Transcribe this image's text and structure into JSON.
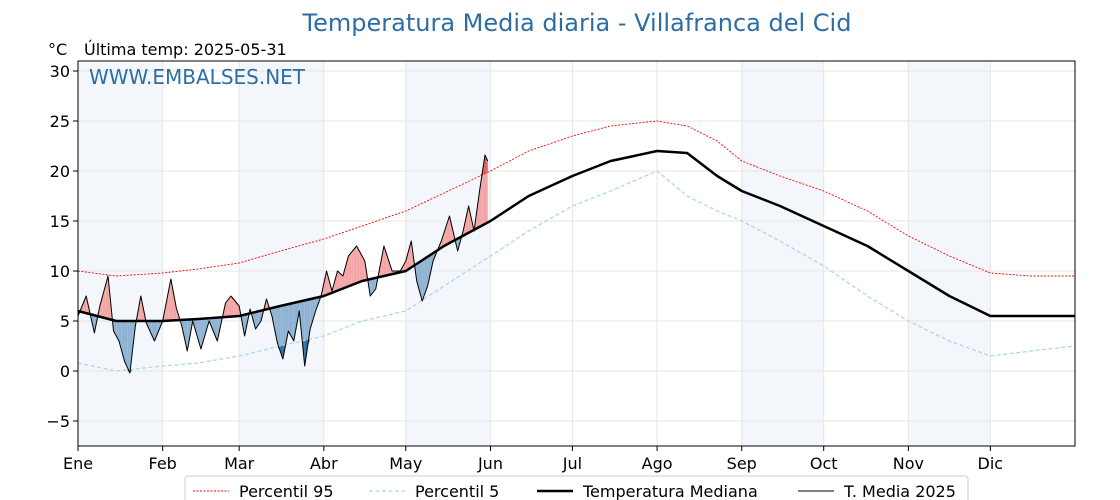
{
  "chart_data": {
    "type": "line",
    "title": "Temperatura Media diaria - Villafranca del Cid",
    "unit": "°C",
    "last_update": "Última temp: 2025-05-31",
    "watermark": "WWW.EMBALSES.NET",
    "ylim": [
      -7.5,
      31
    ],
    "yticks": [
      -5,
      0,
      5,
      10,
      15,
      20,
      25,
      30
    ],
    "xlim": [
      1,
      366
    ],
    "months": [
      {
        "label": "Ene",
        "day": 1
      },
      {
        "label": "Feb",
        "day": 32
      },
      {
        "label": "Mar",
        "day": 60
      },
      {
        "label": "Abr",
        "day": 91
      },
      {
        "label": "May",
        "day": 121
      },
      {
        "label": "Jun",
        "day": 152
      },
      {
        "label": "Jul",
        "day": 182
      },
      {
        "label": "Ago",
        "day": 213
      },
      {
        "label": "Sep",
        "day": 244
      },
      {
        "label": "Oct",
        "day": 274
      },
      {
        "label": "Nov",
        "day": 305
      },
      {
        "label": "Dic",
        "day": 335
      }
    ],
    "shaded_months": [
      "Ene",
      "Mar",
      "May",
      "Sep",
      "Nov"
    ],
    "grid": true,
    "legend_position": "bottom",
    "colors": {
      "p95": "#ff0000",
      "p5": "#add8e6",
      "median": "#000000",
      "current": "#000000",
      "above_median": "#f4a6a6",
      "above_p95": "#e06666",
      "below_median": "#8fb3d3",
      "below_p5": "#2e6fa8",
      "month_shade": "#f3f7fb",
      "title": "#2e6da4"
    },
    "series": [
      {
        "name": "Percentil 95",
        "style": "dotted-thin",
        "points": [
          [
            1,
            10
          ],
          [
            15,
            9.5
          ],
          [
            32,
            9.8
          ],
          [
            45,
            10.2
          ],
          [
            60,
            10.8
          ],
          [
            75,
            12
          ],
          [
            91,
            13.2
          ],
          [
            105,
            14.5
          ],
          [
            121,
            16
          ],
          [
            135,
            17.8
          ],
          [
            152,
            20
          ],
          [
            166,
            22
          ],
          [
            182,
            23.5
          ],
          [
            196,
            24.5
          ],
          [
            213,
            25
          ],
          [
            224,
            24.5
          ],
          [
            235,
            23
          ],
          [
            244,
            21
          ],
          [
            258,
            19.5
          ],
          [
            274,
            18
          ],
          [
            290,
            16
          ],
          [
            305,
            13.5
          ],
          [
            320,
            11.5
          ],
          [
            335,
            9.8
          ],
          [
            350,
            9.5
          ],
          [
            366,
            9.5
          ]
        ]
      },
      {
        "name": "Percentil 5",
        "style": "dashed",
        "points": [
          [
            1,
            0.8
          ],
          [
            15,
            0
          ],
          [
            32,
            0.5
          ],
          [
            45,
            0.8
          ],
          [
            60,
            1.5
          ],
          [
            75,
            2.5
          ],
          [
            91,
            3.5
          ],
          [
            105,
            5
          ],
          [
            121,
            6
          ],
          [
            135,
            8.5
          ],
          [
            152,
            11.5
          ],
          [
            166,
            14
          ],
          [
            182,
            16.5
          ],
          [
            196,
            18
          ],
          [
            213,
            20
          ],
          [
            224,
            17.5
          ],
          [
            235,
            16
          ],
          [
            244,
            15
          ],
          [
            258,
            13
          ],
          [
            274,
            10.5
          ],
          [
            290,
            7.5
          ],
          [
            305,
            5
          ],
          [
            320,
            3
          ],
          [
            335,
            1.5
          ],
          [
            350,
            2
          ],
          [
            366,
            2.5
          ]
        ]
      },
      {
        "name": "Temperatura Mediana",
        "style": "thick",
        "points": [
          [
            1,
            6
          ],
          [
            15,
            5
          ],
          [
            32,
            5
          ],
          [
            45,
            5.2
          ],
          [
            60,
            5.5
          ],
          [
            75,
            6.5
          ],
          [
            91,
            7.5
          ],
          [
            105,
            9
          ],
          [
            121,
            10
          ],
          [
            135,
            12.5
          ],
          [
            152,
            15
          ],
          [
            166,
            17.5
          ],
          [
            182,
            19.5
          ],
          [
            196,
            21
          ],
          [
            213,
            22
          ],
          [
            224,
            21.8
          ],
          [
            235,
            19.5
          ],
          [
            244,
            18
          ],
          [
            258,
            16.5
          ],
          [
            274,
            14.5
          ],
          [
            290,
            12.5
          ],
          [
            305,
            10
          ],
          [
            320,
            7.5
          ],
          [
            335,
            5.5
          ],
          [
            350,
            5.5
          ],
          [
            366,
            5.5
          ]
        ]
      },
      {
        "name": "T. Media 2025",
        "style": "thin",
        "points": [
          [
            1,
            5.5
          ],
          [
            4,
            7.5
          ],
          [
            7,
            3.8
          ],
          [
            9,
            6.5
          ],
          [
            12,
            9.5
          ],
          [
            14,
            4
          ],
          [
            16,
            3
          ],
          [
            18,
            1
          ],
          [
            20,
            -0.2
          ],
          [
            22,
            4.5
          ],
          [
            24,
            7.5
          ],
          [
            26,
            4.8
          ],
          [
            29,
            3
          ],
          [
            32,
            5
          ],
          [
            35,
            9.2
          ],
          [
            37,
            6.3
          ],
          [
            39,
            4.5
          ],
          [
            41,
            2
          ],
          [
            43,
            5
          ],
          [
            46,
            2.2
          ],
          [
            49,
            5
          ],
          [
            52,
            3
          ],
          [
            55,
            6.8
          ],
          [
            57,
            7.5
          ],
          [
            60,
            6.5
          ],
          [
            62,
            3.5
          ],
          [
            64,
            6.2
          ],
          [
            66,
            4.2
          ],
          [
            68,
            5
          ],
          [
            70,
            7.2
          ],
          [
            72,
            5.5
          ],
          [
            74,
            2.8
          ],
          [
            76,
            1.2
          ],
          [
            78,
            4
          ],
          [
            80,
            3
          ],
          [
            82,
            6
          ],
          [
            84,
            0.5
          ],
          [
            86,
            4.2
          ],
          [
            88,
            6
          ],
          [
            90,
            7.5
          ],
          [
            92,
            10
          ],
          [
            94,
            8
          ],
          [
            96,
            10
          ],
          [
            98,
            9.5
          ],
          [
            100,
            11.5
          ],
          [
            103,
            12.5
          ],
          [
            106,
            11
          ],
          [
            108,
            7.5
          ],
          [
            110,
            8.2
          ],
          [
            113,
            12.5
          ],
          [
            116,
            10
          ],
          [
            119,
            10
          ],
          [
            121,
            11
          ],
          [
            123,
            13
          ],
          [
            125,
            9
          ],
          [
            127,
            7
          ],
          [
            129,
            8.5
          ],
          [
            131,
            11
          ],
          [
            134,
            13
          ],
          [
            137,
            15.5
          ],
          [
            140,
            12
          ],
          [
            142,
            14
          ],
          [
            144,
            16.5
          ],
          [
            146,
            14
          ],
          [
            148,
            18
          ],
          [
            150,
            21.6
          ],
          [
            151,
            21
          ]
        ]
      }
    ],
    "legend": [
      {
        "label": "Percentil 95",
        "series": "p95"
      },
      {
        "label": "Percentil 5",
        "series": "p5"
      },
      {
        "label": "Temperatura Mediana",
        "series": "median"
      },
      {
        "label": "T. Media 2025",
        "series": "current"
      }
    ]
  }
}
